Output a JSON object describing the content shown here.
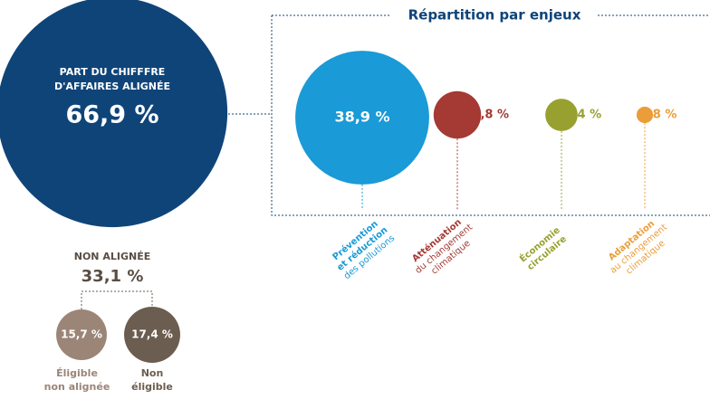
{
  "aligned": {
    "label_lines": [
      "PART DU CHIFFFRE",
      "D'AFFAIRES ALIGNÉE"
    ],
    "value": 66.9,
    "value_label": "66,9 %",
    "color": "#0f4479"
  },
  "breakdown": {
    "title": "Répartition par enjeux",
    "items": [
      {
        "value": 38.9,
        "value_label": "38,9 %",
        "color": "#1a9ad6",
        "label_bold": [
          "Prévention",
          "et réduction"
        ],
        "label_rest": [
          "des pollutions"
        ]
      },
      {
        "value": 13.8,
        "value_label": "13,8 %",
        "color": "#a43a33",
        "label_bold": [
          "Atténuation"
        ],
        "label_rest": [
          "du changement",
          "climatique"
        ]
      },
      {
        "value": 9.4,
        "value_label": "9,4 %",
        "color": "#98a12f",
        "label_bold": [
          "Économie",
          "circulaire"
        ],
        "label_rest": []
      },
      {
        "value": 4.8,
        "value_label": "4,8 %",
        "color": "#eb9d3a",
        "label_bold": [
          "Adaptation"
        ],
        "label_rest": [
          "au changement",
          "climatique"
        ]
      }
    ]
  },
  "non_aligned": {
    "label": "NON ALIGNÉE",
    "value": 33.1,
    "value_label": "33,1 %",
    "items": [
      {
        "value": 15.7,
        "value_label": "15,7 %",
        "color": "#9b8577",
        "label_lines": [
          "Éligible",
          "non alignée"
        ]
      },
      {
        "value": 17.4,
        "value_label": "17,4 %",
        "color": "#6b5d4f",
        "label_lines": [
          "Non",
          "éligible"
        ]
      }
    ]
  }
}
